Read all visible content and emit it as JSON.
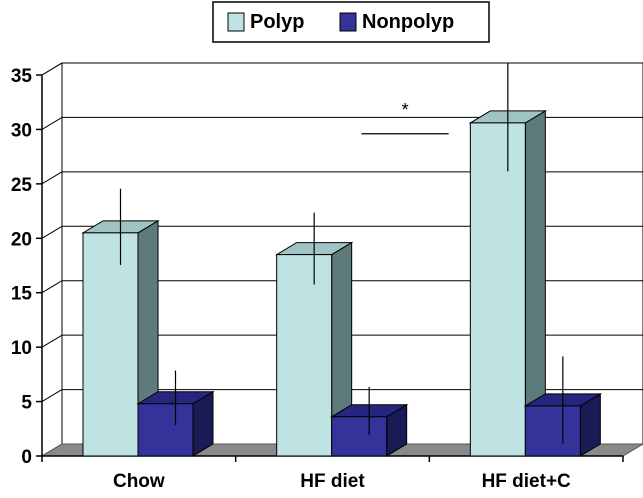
{
  "chart_data": {
    "type": "bar",
    "style": "3d",
    "categories": [
      "Chow",
      "HF diet",
      "HF diet+C"
    ],
    "series": [
      {
        "name": "Polyp",
        "values": [
          20.5,
          18.5,
          30.6
        ],
        "errors": [
          3.5,
          3.3,
          5.0
        ],
        "colors": {
          "front": "#BFE3E3",
          "top": "#9FC4C4",
          "side": "#5E7B7B"
        }
      },
      {
        "name": "Nonpolyp",
        "values": [
          4.8,
          3.6,
          4.6
        ],
        "errors": [
          2.5,
          2.2,
          4.0
        ],
        "colors": {
          "front": "#33339A",
          "top": "#262680",
          "side": "#1A1A55"
        }
      }
    ],
    "ylim": [
      0,
      35
    ],
    "yticks": [
      0,
      5,
      10,
      15,
      20,
      25,
      30,
      35
    ],
    "grid": true,
    "legend_position": "top-center",
    "annotations": [
      {
        "text": "*",
        "between": [
          "HF diet",
          "HF diet+C"
        ]
      }
    ],
    "title": "",
    "xlabel": "",
    "ylabel": ""
  },
  "colors": {
    "back_wall": "#ffffff",
    "floor": "#8A8A8A",
    "grid": "#000000"
  }
}
